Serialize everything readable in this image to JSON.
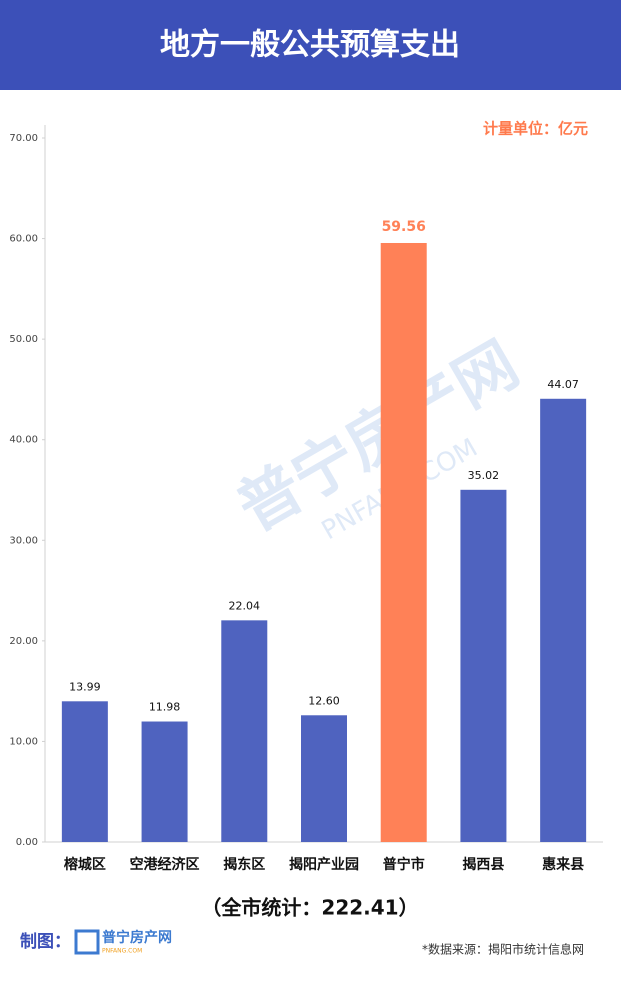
{
  "chart_data": {
    "type": "bar",
    "title": "地方一般公共预算支出",
    "unit_label": "计量单位：亿元",
    "categories": [
      "榕城区",
      "空港经济区",
      "揭东区",
      "揭阳产业园",
      "普宁市",
      "揭西县",
      "惠来县"
    ],
    "values": [
      13.99,
      11.98,
      22.04,
      12.6,
      59.56,
      35.02,
      44.07
    ],
    "value_labels": [
      "13.99",
      "11.98",
      "22.04",
      "12.60",
      "59.56",
      "35.02",
      "44.07"
    ],
    "color": "#4f63bf",
    "colors": [
      "#4f63bf",
      "#4f63bf",
      "#4f63bf",
      "#4f63bf",
      "#ff8157",
      "#4f63bf",
      "#4f63bf"
    ],
    "ylim": [
      0,
      70
    ],
    "yticks": [
      {
        "value": 0,
        "label": "0.00"
      },
      {
        "value": 10,
        "label": "10.00"
      },
      {
        "value": 20,
        "label": "20.00"
      },
      {
        "value": 30,
        "label": "30.00"
      },
      {
        "value": 40,
        "label": "40.00"
      },
      {
        "value": 50,
        "label": "50.00"
      },
      {
        "value": 60,
        "label": "60.00"
      },
      {
        "value": 70,
        "label": "70.00"
      }
    ],
    "grid": false,
    "total": "（全市统计：222.41）",
    "credit_label": "制图：",
    "logo_text": "普宁房产网",
    "logo_sub": "PNFANG.COM",
    "source": "*数据来源：揭阳市统计信息网"
  }
}
